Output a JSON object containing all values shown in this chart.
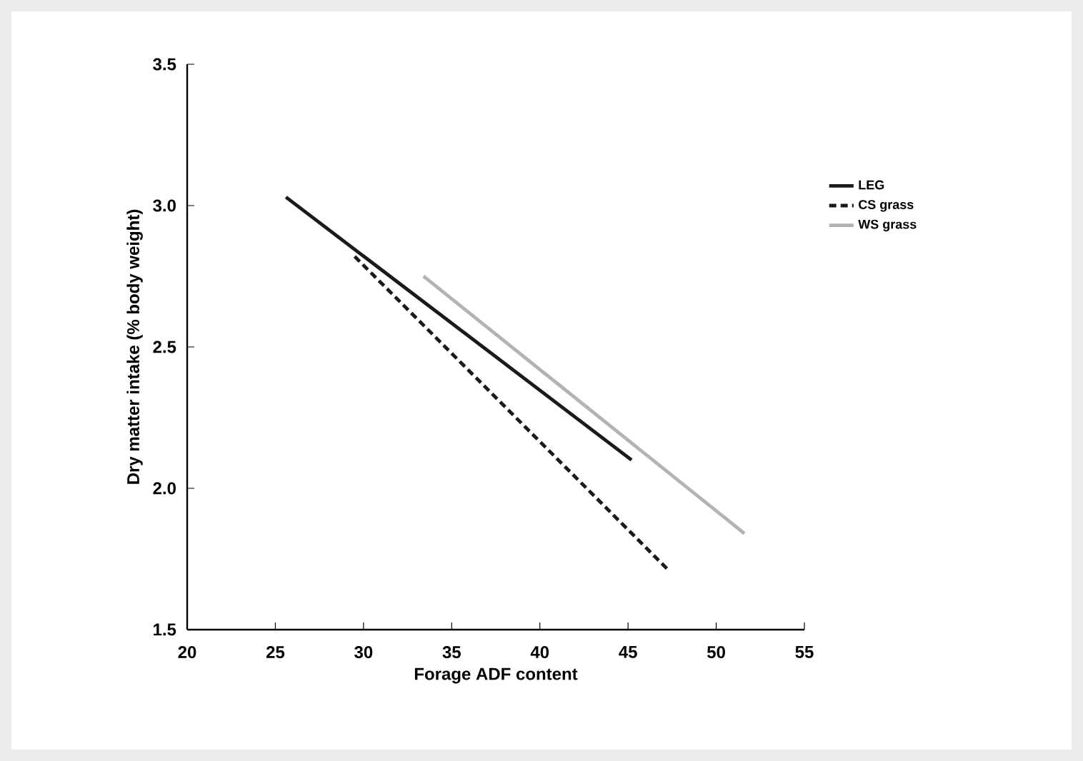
{
  "chart_data": {
    "type": "line",
    "xlabel": "Forage ADF content",
    "ylabel": "Dry matter intake (% body weight)",
    "xlim": [
      20,
      55
    ],
    "ylim": [
      1.5,
      3.5
    ],
    "xticks": [
      20,
      25,
      30,
      35,
      40,
      45,
      50,
      55
    ],
    "yticks": [
      {
        "value": 1.5,
        "label": "1.5"
      },
      {
        "value": 2.0,
        "label": "2.0"
      },
      {
        "value": 2.5,
        "label": "2.5"
      },
      {
        "value": 3.0,
        "label": "3.0"
      },
      {
        "value": 3.5,
        "label": "3.5"
      }
    ],
    "grid": false,
    "legend": "right",
    "series": [
      {
        "name": "LEG",
        "color": "#1a1a1a",
        "line_style": "solid",
        "x": [
          25.6,
          45.2
        ],
        "values": [
          3.03,
          2.1
        ]
      },
      {
        "name": "CS grass",
        "color": "#1a1a1a",
        "line_style": "dashed",
        "x": [
          29.5,
          47.3
        ],
        "values": [
          2.82,
          1.71
        ]
      },
      {
        "name": "WS grass",
        "color": "#b3b3b3",
        "line_style": "solid",
        "x": [
          33.4,
          51.6
        ],
        "values": [
          2.75,
          1.84
        ]
      }
    ]
  }
}
